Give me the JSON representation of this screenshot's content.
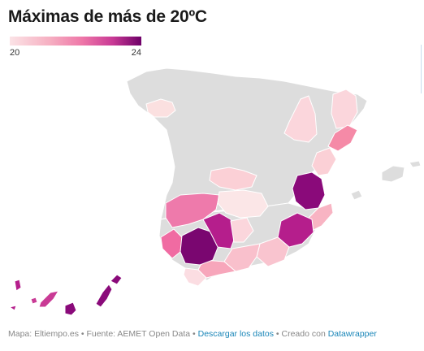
{
  "title": "Máximas de más de 20ºC",
  "legend": {
    "min_label": "20",
    "max_label": "24",
    "min": 20,
    "max": 24
  },
  "colors": {
    "no_data": "#dddddd",
    "scale": [
      "#fbe3e6",
      "#f6b0c2",
      "#ee77a8",
      "#c93a95",
      "#6e0068"
    ]
  },
  "footer": {
    "source_text": "Mapa: Eltiempo.es • Fuente: AEMET Open Data • ",
    "download_label": "Descargar los datos",
    "separator": " • Creado con ",
    "credit_label": "Datawrapper"
  }
}
